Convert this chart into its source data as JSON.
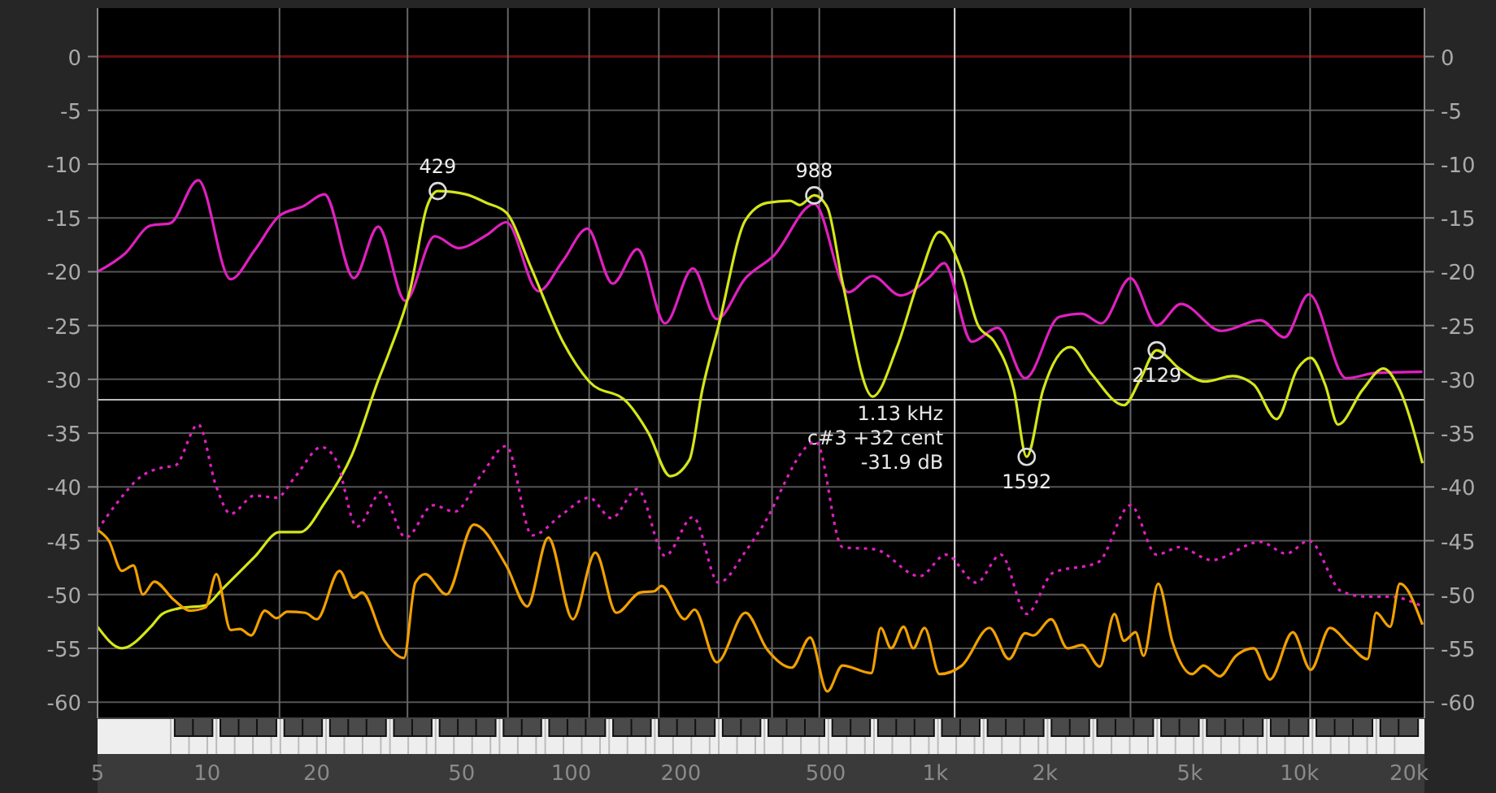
{
  "chart_data": {
    "type": "line",
    "log": "x",
    "grid": "y",
    "xlim": [
      5,
      22050
    ],
    "ylim": [
      -61.5,
      4.5
    ],
    "y2lim": [
      -61.5,
      4.5
    ],
    "xticks": [
      5,
      10,
      20,
      50,
      100,
      200,
      500,
      {
        "value": 1000,
        "label": "1k"
      },
      {
        "value": 2000,
        "label": "2k"
      },
      {
        "value": 5000,
        "label": "5k"
      },
      {
        "value": 10000,
        "label": "10k"
      },
      {
        "value": 20000,
        "label": "20k"
      }
    ],
    "yticks": [
      0,
      -5,
      -10,
      -15,
      -20,
      -25,
      -30,
      -35,
      -40,
      -45,
      -50,
      -55,
      -60
    ],
    "y2ticks": [
      0,
      -5,
      -10,
      -15,
      -20,
      -25,
      -30,
      -35,
      -40,
      -45,
      -50,
      -55,
      -60
    ],
    "series": [
      {
        "color": "#e020c0",
        "x": [
          5,
          5.95,
          7.0,
          7.9,
          9.45,
          11.6,
          13.5,
          15.8,
          18.4,
          21,
          25.3,
          29.5,
          35,
          42.2,
          49,
          58.5,
          66.3,
          81.3,
          94.8,
          110.7,
          130,
          152,
          181,
          216,
          251,
          301,
          360,
          465,
          577,
          673,
          801,
          964,
          1057,
          1260,
          1483,
          1766,
          2189,
          2527,
          2855,
          3437,
          4055,
          4724,
          6108,
          7811,
          9100,
          10620,
          13450,
          16245,
          21770
        ],
        "values": [
          -20,
          -18.3,
          -15.7,
          -15.5,
          -11.5,
          -20.7,
          -18,
          -14.8,
          -13.9,
          -12.8,
          -20.6,
          -15.8,
          -22.7,
          -16.7,
          -17.8,
          -16.6,
          -15.4,
          -21.8,
          -19,
          -16,
          -21.1,
          -17.9,
          -24.8,
          -19.7,
          -24.4,
          -20.6,
          -18.5,
          -13.7,
          -21.9,
          -20.4,
          -22.2,
          -20.5,
          -19.2,
          -26.5,
          -25.2,
          -29.9,
          -24.2,
          -23.9,
          -24.8,
          -20.6,
          -25,
          -23,
          -25.5,
          -24.5,
          -26.1,
          -22.1,
          -29.9,
          -29.4,
          -29.3
        ]
      },
      {
        "color": "#d4e619",
        "x": [
          5,
          5.83,
          7.0,
          7.53,
          8.34,
          9.9,
          11,
          13.5,
          15.8,
          18,
          21,
          25,
          29.5,
          31.6,
          36.2,
          40.1,
          43,
          51.3,
          58.5,
          66.3,
          77.3,
          94.8,
          112,
          143,
          163,
          187,
          211,
          229,
          254,
          301,
          345,
          399,
          424,
          465,
          505,
          556,
          673,
          785,
          906,
          1027,
          1183,
          1311,
          1452,
          1644,
          1782,
          1976,
          2350,
          2687,
          3297,
          3655,
          4055,
          4680,
          5510,
          6561,
          7496,
          8650,
          9885,
          10740,
          11770,
          12770,
          14890,
          17020,
          18870,
          21770
        ],
        "values": [
          -53,
          -55,
          -53,
          -51.8,
          -51.3,
          -51,
          -49.5,
          -46.5,
          -44.2,
          -44.2,
          -41.5,
          -37,
          -30.1,
          -27.5,
          -21.5,
          -14,
          -12.5,
          -12.8,
          -13.6,
          -14.5,
          -19.5,
          -26.5,
          -30.2,
          -32.2,
          -35,
          -39,
          -37.5,
          -31,
          -25,
          -15.2,
          -13.6,
          -13.4,
          -13.8,
          -12.9,
          -14,
          -21,
          -31.6,
          -27,
          -20.5,
          -16.3,
          -20,
          -25,
          -26.5,
          -31,
          -37.2,
          -31,
          -27,
          -29.5,
          -32.4,
          -30,
          -27.3,
          -29,
          -30.2,
          -29.7,
          -30.5,
          -33.7,
          -29,
          -28,
          -30.5,
          -34.2,
          -31,
          -29,
          -31,
          -37.8
        ]
      },
      {
        "color": "#e020c0",
        "line_style": "dotted",
        "x": [
          5,
          5.65,
          6.6,
          7.53,
          8.18,
          9.45,
          10.6,
          11.6,
          13.5,
          15.5,
          17.5,
          20.6,
          22.6,
          25.8,
          30.1,
          35.1,
          41.8,
          47.8,
          56.8,
          66.3,
          78.1,
          94.8,
          112,
          129,
          152,
          181,
          216,
          254,
          301,
          333,
          470,
          556,
          682,
          906,
          1069,
          1297,
          1513,
          1782,
          2101,
          2800,
          3437,
          4055,
          4680,
          5740,
          7811,
          9200,
          10620,
          13040,
          15380,
          17740,
          21770
        ],
        "values": [
          -44,
          -41.5,
          -39,
          -38.2,
          -38,
          -34.2,
          -40,
          -42.5,
          -40.8,
          -41,
          -39,
          -36.3,
          -37.5,
          -43.7,
          -40.5,
          -44.7,
          -41.7,
          -42.3,
          -38.8,
          -36.2,
          -44.5,
          -42.5,
          -41,
          -42.9,
          -40.2,
          -46.4,
          -42.8,
          -48.9,
          -46,
          -43.8,
          -35.8,
          -45.6,
          -45.8,
          -48.3,
          -46.3,
          -48.9,
          -46.3,
          -51.8,
          -48,
          -47,
          -41.7,
          -46.3,
          -45.6,
          -46.8,
          -45.1,
          -46.2,
          -45,
          -49.7,
          -50.2,
          -50.2,
          -51.1
        ]
      },
      {
        "color": "#f0a000",
        "x": [
          5,
          5.37,
          5.83,
          6.27,
          6.66,
          7.16,
          8.1,
          8.97,
          9.9,
          10.6,
          11.6,
          12.3,
          13.2,
          14.4,
          15.5,
          16.6,
          18.6,
          20,
          23.1,
          25.3,
          26.6,
          30.7,
          34.7,
          37.3,
          39.7,
          45.4,
          54,
          66.3,
          75.7,
          86.5,
          101,
          116.5,
          133,
          155,
          169,
          177,
          205,
          218,
          251,
          301,
          345,
          403,
          453,
          505,
          556,
          667,
          708,
          756,
          818,
          870,
          934,
          1027,
          1183,
          1409,
          1593,
          1766,
          1858,
          2080,
          2306,
          2529,
          2830,
          3104,
          3297,
          3547,
          3733,
          4093,
          4488,
          5070,
          5455,
          6040,
          6694,
          7496,
          8300,
          9590,
          10740,
          12130,
          13730,
          15380,
          16245,
          17740,
          18870,
          21770
        ],
        "values": [
          -44,
          -45,
          -47.8,
          -47.3,
          -50,
          -48.8,
          -50.5,
          -51.5,
          -51.2,
          -48.1,
          -53.3,
          -53.2,
          -53.8,
          -51.5,
          -52.2,
          -51.6,
          -51.7,
          -52.3,
          -47.8,
          -50.3,
          -49.8,
          -54.3,
          -55.9,
          -48.9,
          -48.1,
          -50,
          -43.5,
          -47.3,
          -51.1,
          -44.7,
          -52.3,
          -46.1,
          -51.7,
          -49.8,
          -49.7,
          -49.2,
          -52.3,
          -51.4,
          -56.3,
          -51.7,
          -55.1,
          -56.8,
          -54,
          -59,
          -56.6,
          -57.3,
          -53.1,
          -55,
          -53,
          -55,
          -53.1,
          -57.4,
          -56.6,
          -53.1,
          -56,
          -53.6,
          -53.8,
          -52.3,
          -55,
          -54.7,
          -56.7,
          -51.8,
          -54.3,
          -53.5,
          -55.7,
          -49,
          -54.5,
          -57.4,
          -56.6,
          -57.6,
          -55.7,
          -55,
          -57.9,
          -53.5,
          -57,
          -53.1,
          -54.7,
          -56,
          -51.7,
          -53,
          -49,
          -52.8
        ]
      }
    ],
    "ref_lines": [
      {
        "axis": "y",
        "value": 0,
        "color": "#8b0000"
      },
      {
        "axis": "x",
        "value": 15.8,
        "color": "#666666"
      },
      {
        "axis": "x",
        "value": 35.5,
        "color": "#666666"
      },
      {
        "axis": "x",
        "value": 67,
        "color": "#666666"
      },
      {
        "axis": "x",
        "value": 112,
        "color": "#666666"
      },
      {
        "axis": "x",
        "value": 174,
        "color": "#666666"
      },
      {
        "axis": "x",
        "value": 254,
        "color": "#666666"
      },
      {
        "axis": "x",
        "value": 356,
        "color": "#666666"
      },
      {
        "axis": "x",
        "value": 480,
        "color": "#666666"
      },
      {
        "axis": "x",
        "value": 3436,
        "color": "#666666"
      },
      {
        "axis": "x",
        "value": 10700,
        "color": "#666666"
      },
      {
        "axis": "y",
        "value": -31.9,
        "color": "#bbbbbb"
      },
      {
        "axis": "x",
        "value": 1130,
        "color": "#dddddd",
        "label": "1.13 kHz\nc#3 +32 cent\n-31.9 dB"
      }
    ],
    "annotations": [
      {
        "text": "429",
        "x": 43,
        "y": -12.5
      },
      {
        "text": "988",
        "x": 465,
        "y": -12.9
      },
      {
        "text": "1592",
        "x": 1782,
        "y": -37.2
      },
      {
        "text": "2129",
        "x": 4055,
        "y": -27.3
      }
    ]
  }
}
